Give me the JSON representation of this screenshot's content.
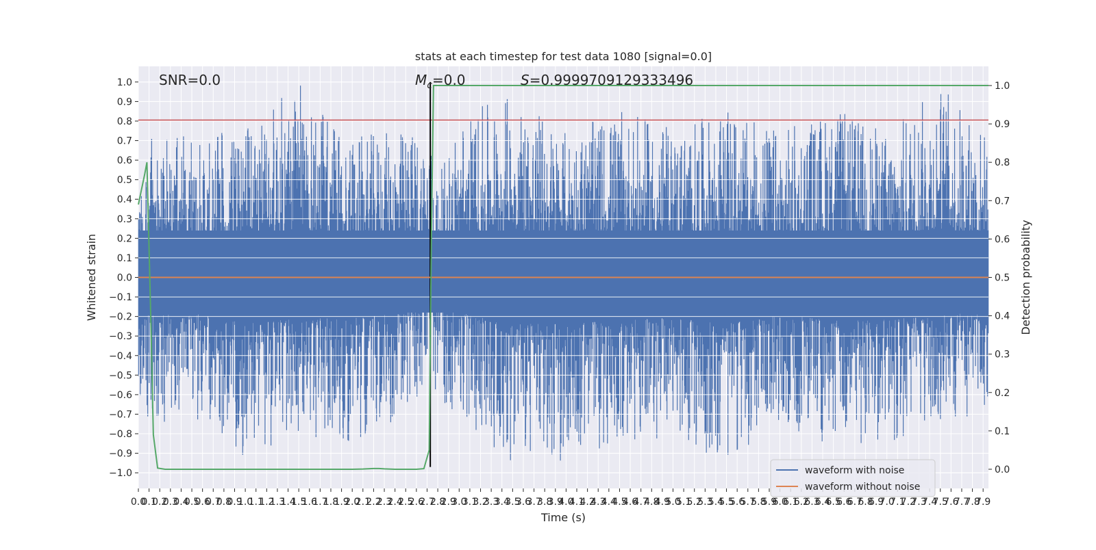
{
  "chart_data": {
    "type": "line",
    "title": "stats at each timestep for test data 1080 [signal=0.0]",
    "xlabel": "Time (s)",
    "ylabel": "Whitened strain",
    "y2label": "Detection probability",
    "xlim": [
      0.0,
      7.95
    ],
    "ylim": [
      -1.08,
      1.08
    ],
    "y2lim": [
      -0.05,
      1.05
    ],
    "x_ticks": [
      0.0,
      0.1,
      0.2,
      0.3,
      0.4,
      0.5,
      0.6,
      0.7,
      0.8,
      0.9,
      1.0,
      1.1,
      1.2,
      1.3,
      1.4,
      1.5,
      1.6,
      1.7,
      1.8,
      1.9,
      2.0,
      2.1,
      2.2,
      2.3,
      2.4,
      2.5,
      2.6,
      2.7,
      2.8,
      2.9,
      3.0,
      3.1,
      3.2,
      3.3,
      3.4,
      3.5,
      3.6,
      3.7,
      3.8,
      3.9,
      4.0,
      4.1,
      4.2,
      4.3,
      4.4,
      4.5,
      4.6,
      4.7,
      4.8,
      4.9,
      5.0,
      5.1,
      5.2,
      5.3,
      5.4,
      5.5,
      5.6,
      5.7,
      5.8,
      5.9,
      6.0,
      6.1,
      6.2,
      6.3,
      6.4,
      6.5,
      6.6,
      6.7,
      6.8,
      6.9,
      7.0,
      7.1,
      7.2,
      7.3,
      7.4,
      7.5,
      7.6,
      7.7,
      7.8,
      7.9
    ],
    "y_ticks": [
      1.0,
      0.9,
      0.8,
      0.7,
      0.6,
      0.5,
      0.4,
      0.3,
      0.2,
      0.1,
      0.0,
      -0.1,
      -0.2,
      -0.3,
      -0.4,
      -0.5,
      -0.6,
      -0.7,
      -0.8,
      -0.9,
      -1.0
    ],
    "y_tick_labels": [
      "1.0",
      "0.9",
      "0.8",
      "0.7",
      "0.6",
      "0.5",
      "0.4",
      "0.3",
      "0.2",
      "0.1",
      "0.0",
      "−0.1",
      "−0.2",
      "−0.3",
      "−0.4",
      "−0.5",
      "−0.6",
      "−0.7",
      "−0.8",
      "−0.9",
      "−1.0"
    ],
    "y2_ticks": [
      1.0,
      0.9,
      0.8,
      0.7,
      0.6,
      0.5,
      0.4,
      0.3,
      0.2,
      0.1,
      0.0
    ],
    "grid": true,
    "legend_position": "lower-right",
    "annotations": {
      "snr": "SNR=0.0",
      "mc_symbol": "M",
      "mc_subscript": "c",
      "mc_value": "=0.0",
      "s_symbol": "S",
      "s_value": "=0.9999709129333496"
    },
    "series": [
      {
        "name": "waveform with noise",
        "color": "#4c72b0",
        "axis": "left",
        "description": "dense noise trace",
        "envelope_approx": {
          "x": [
            0.0,
            0.05,
            0.1,
            0.2,
            0.5,
            1.0,
            1.5,
            2.0,
            2.5,
            2.72,
            2.8,
            3.0,
            3.5,
            4.0,
            4.5,
            5.0,
            5.5,
            6.0,
            6.5,
            7.0,
            7.5,
            7.95
          ],
          "max": [
            0.3,
            0.69,
            0.7,
            0.79,
            0.7,
            0.77,
            1.0,
            0.72,
            0.76,
            0.75,
            0.5,
            0.82,
            0.95,
            0.75,
            0.85,
            0.77,
            0.85,
            0.76,
            0.87,
            0.75,
            1.0,
            0.74
          ],
          "min": [
            -0.63,
            -0.6,
            -0.78,
            -0.76,
            -0.72,
            -0.93,
            -0.84,
            -0.84,
            -0.71,
            -0.56,
            -0.62,
            -0.72,
            -0.95,
            -0.94,
            -0.87,
            -0.83,
            -0.95,
            -0.76,
            -0.88,
            -0.86,
            -0.79,
            -0.66
          ]
        }
      },
      {
        "name": "waveform without noise",
        "color": "#dd8452",
        "axis": "left",
        "x": [
          0.0,
          7.95
        ],
        "y": [
          0.0,
          0.0
        ]
      },
      {
        "name": "detection probability",
        "color": "#55a868",
        "axis": "right",
        "x": [
          0.0,
          0.06,
          0.08,
          0.12,
          0.14,
          0.18,
          0.25,
          0.5,
          1.0,
          1.5,
          2.0,
          2.1,
          2.2,
          2.25,
          2.3,
          2.4,
          2.5,
          2.6,
          2.67,
          2.72,
          2.74,
          2.76,
          2.8,
          7.95
        ],
        "y": [
          0.69,
          0.77,
          0.8,
          0.35,
          0.09,
          0.003,
          0.0,
          0.0,
          0.0,
          0.0,
          0.0,
          0.0005,
          0.002,
          0.002,
          0.001,
          0.0,
          0.0,
          0.0,
          0.0015,
          0.05,
          0.6,
          1.0,
          1.0,
          1.0
        ]
      }
    ],
    "reference_lines": [
      {
        "kind": "horizontal",
        "axis": "left",
        "y": 0.805,
        "color": "#c44e52"
      },
      {
        "kind": "vertical",
        "x": 2.73,
        "ymin": -0.97,
        "ymax": 1.0,
        "color": "#000000"
      }
    ]
  }
}
